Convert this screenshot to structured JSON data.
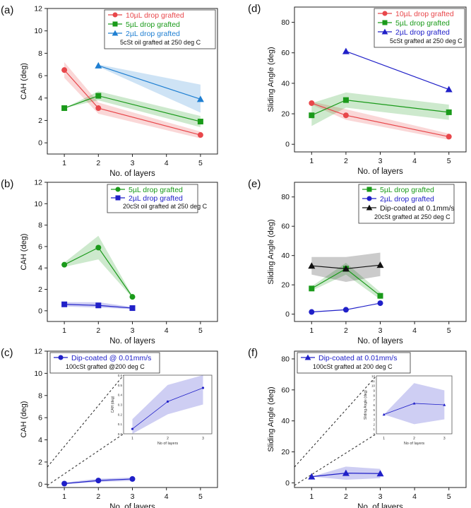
{
  "chart_data": [
    {
      "panel_label": "(a)",
      "type": "line",
      "xlabel": "No. of layers",
      "ylabel": "CAH (deg)",
      "xlim": [
        0.5,
        5.5
      ],
      "ylim": [
        -1,
        12
      ],
      "xticks": [
        "1",
        "2",
        "3",
        "4",
        "5"
      ],
      "yticks": [
        "0",
        "2",
        "4",
        "6",
        "8",
        "10",
        "12"
      ],
      "legend": {
        "placement": "top-right",
        "note": "5cSt oil grafted at 250 deg C"
      },
      "series": [
        {
          "name": "10µL drop grafted",
          "color": "#e8474b",
          "marker": "circle",
          "x": [
            1,
            2,
            5
          ],
          "y": [
            6.5,
            3.1,
            0.7
          ],
          "band": [
            [
              7.2,
              5.8
            ],
            [
              3.6,
              2.6
            ],
            [
              1.0,
              0.4
            ]
          ]
        },
        {
          "name": "5µL drop grafted",
          "color": "#1a9a1a",
          "marker": "square",
          "x": [
            1,
            2,
            5
          ],
          "y": [
            3.1,
            4.2,
            1.9
          ],
          "band": [
            [
              3.1,
              3.1
            ],
            [
              4.6,
              3.8
            ],
            [
              2.4,
              1.4
            ]
          ]
        },
        {
          "name": "2µL drop grafted",
          "color": "#1f7fd2",
          "marker": "triangle",
          "x": [
            2,
            5
          ],
          "y": [
            6.9,
            3.9
          ],
          "band": [
            [
              7.0,
              6.8
            ],
            [
              5.2,
              2.7
            ]
          ]
        }
      ]
    },
    {
      "panel_label": "(d)",
      "type": "line",
      "xlabel": "No. of layers",
      "ylabel": "Sliding Angle (deg)",
      "xlim": [
        0.5,
        5.5
      ],
      "ylim": [
        -5,
        90
      ],
      "xticks": [
        "1",
        "2",
        "3",
        "4",
        "5"
      ],
      "yticks": [
        "0",
        "20",
        "40",
        "60",
        "80"
      ],
      "legend": {
        "placement": "top-right",
        "note": "5cSt grafted at 250 deg C"
      },
      "series": [
        {
          "name": "10µL drop grafted",
          "color": "#e8474b",
          "marker": "circle",
          "x": [
            1,
            2,
            5
          ],
          "y": [
            27,
            19,
            5
          ],
          "band": [
            [
              28,
              26
            ],
            [
              23,
              16
            ],
            [
              7,
              3
            ]
          ]
        },
        {
          "name": "5µL drop grafted",
          "color": "#1a9a1a",
          "marker": "square",
          "x": [
            1,
            2,
            5
          ],
          "y": [
            19,
            29,
            21
          ],
          "band": [
            [
              27,
              12
            ],
            [
              34,
              24
            ],
            [
              26,
              16
            ]
          ]
        },
        {
          "name": "2µL drop grafted",
          "color": "#2020c8",
          "marker": "triangle",
          "x": [
            2,
            5
          ],
          "y": [
            61,
            36
          ],
          "band": null
        }
      ]
    },
    {
      "panel_label": "(b)",
      "type": "line",
      "xlabel": "No. of layers",
      "ylabel": "CAH (deg)",
      "xlim": [
        0.5,
        5.5
      ],
      "ylim": [
        -1,
        12
      ],
      "xticks": [
        "1",
        "2",
        "3",
        "4",
        "5"
      ],
      "yticks": [
        "0",
        "2",
        "4",
        "6",
        "8",
        "10",
        "12"
      ],
      "legend": {
        "placement": "top-right",
        "note": "20cSt oil grafted at 250 deg C"
      },
      "series": [
        {
          "name": "5µL drop grafted",
          "color": "#1a9a1a",
          "marker": "circle",
          "x": [
            1,
            2,
            3
          ],
          "y": [
            4.3,
            5.9,
            1.3
          ],
          "band": [
            [
              4.5,
              4.1
            ],
            [
              7.0,
              4.8
            ],
            [
              1.4,
              1.2
            ]
          ]
        },
        {
          "name": "2µL drop grafted",
          "color": "#2020c8",
          "marker": "square",
          "x": [
            1,
            2,
            3
          ],
          "y": [
            0.6,
            0.5,
            0.25
          ],
          "band": [
            [
              0.8,
              0.4
            ],
            [
              0.8,
              0.3
            ],
            [
              0.35,
              0.15
            ]
          ]
        }
      ]
    },
    {
      "panel_label": "(e)",
      "type": "line",
      "xlabel": "No. of layers",
      "ylabel": "Sliding Angle (deg)",
      "xlim": [
        0.5,
        5.5
      ],
      "ylim": [
        -5,
        90
      ],
      "xticks": [
        "1",
        "2",
        "3",
        "4",
        "5"
      ],
      "yticks": [
        "0",
        "20",
        "40",
        "60",
        "80"
      ],
      "legend": {
        "placement": "top-right",
        "note": "20cSt grafted at 250 deg C"
      },
      "series": [
        {
          "name": "5µL drop grafted",
          "color": "#1a9a1a",
          "marker": "square",
          "x": [
            1,
            2,
            3
          ],
          "y": [
            17.5,
            31,
            12.5
          ],
          "band": [
            [
              19,
              16
            ],
            [
              35,
              27
            ],
            [
              15,
              10
            ]
          ]
        },
        {
          "name": "2µL drop grafted",
          "color": "#2020c8",
          "marker": "circle",
          "x": [
            1,
            2,
            3
          ],
          "y": [
            1.5,
            3,
            7.5
          ],
          "band": null
        },
        {
          "name": "Dip-coated at 0.1mm/s",
          "color": "#111111",
          "marker": "triangle",
          "x": [
            1,
            2,
            3
          ],
          "y": [
            33,
            31,
            33.5
          ],
          "band": [
            [
              39,
              27
            ],
            [
              39,
              22
            ],
            [
              42,
              26
            ]
          ]
        }
      ]
    },
    {
      "panel_label": "(c)",
      "type": "line",
      "xlabel": "No. of layers",
      "ylabel": "CAH (deg)",
      "xlim": [
        0.5,
        5.5
      ],
      "ylim": [
        -0.3,
        12
      ],
      "xticks": [
        "1",
        "2",
        "3",
        "4",
        "5"
      ],
      "yticks": [
        "0",
        "2",
        "4",
        "6",
        "8",
        "10",
        "12"
      ],
      "legend": {
        "placement": "top-left",
        "note": "100cSt grafted @200 deg C"
      },
      "series": [
        {
          "name": "Dip-coated @ 0.01mm/s",
          "color": "#2020c8",
          "marker": "circle",
          "x": [
            1,
            2,
            3
          ],
          "y": [
            0.05,
            0.33,
            0.47
          ],
          "band": [
            [
              0.15,
              0.0
            ],
            [
              0.5,
              0.2
            ],
            [
              0.6,
              0.3
            ]
          ]
        }
      ],
      "inset": {
        "xlabel": "No of layers",
        "ylabel": "CAH (deg)",
        "xticks": [
          "1",
          "2",
          "3"
        ],
        "yticks": [
          "0.0",
          "0.1",
          "0.2",
          "0.3",
          "0.4",
          "0.5",
          "0.6"
        ],
        "ylim": [
          0,
          0.6
        ]
      }
    },
    {
      "panel_label": "(f)",
      "type": "line",
      "xlabel": "No. of layers",
      "ylabel": "Sliding Angle (deg)",
      "xlim": [
        0.5,
        5.5
      ],
      "ylim": [
        -3,
        85
      ],
      "xticks": [
        "1",
        "2",
        "3",
        "4",
        "5"
      ],
      "yticks": [
        "0",
        "20",
        "40",
        "60",
        "80"
      ],
      "legend": {
        "placement": "top-left",
        "note": "100cSt grafted at 200 deg C"
      },
      "series": [
        {
          "name": "Dip-coated at 0.01mm/s",
          "color": "#2020c8",
          "marker": "triangle",
          "x": [
            1,
            2,
            3
          ],
          "y": [
            4,
            6.3,
            6
          ],
          "band": [
            [
              4,
              4
            ],
            [
              10.5,
              2
            ],
            [
              9,
              3
            ]
          ]
        }
      ],
      "inset": {
        "xlabel": "No of layers",
        "ylabel": "Sliding Angle (deg)",
        "xticks": [
          "1",
          "2",
          "3"
        ],
        "yticks": [
          "0",
          "1",
          "2",
          "3",
          "4",
          "5",
          "6",
          "7",
          "8",
          "9",
          "10",
          "11",
          "12"
        ],
        "ylim": [
          0,
          12
        ]
      }
    }
  ]
}
